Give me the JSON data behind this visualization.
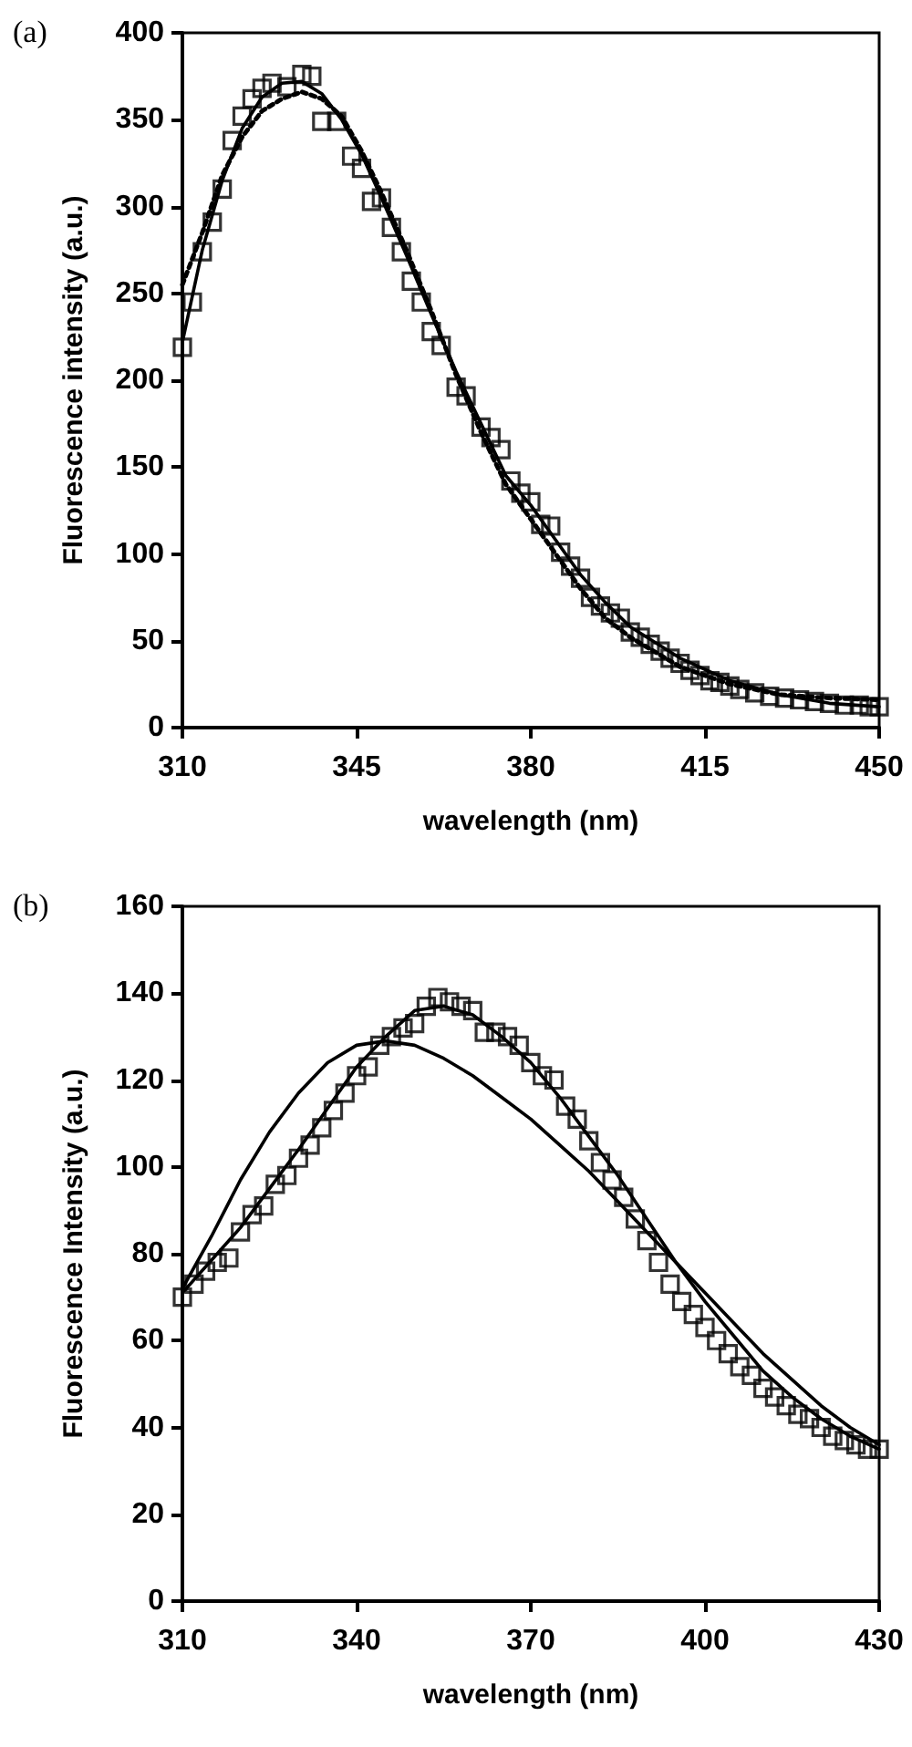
{
  "chart_data": [
    {
      "type": "scatter",
      "title": "(a)",
      "xlabel": "wavelength (nm)",
      "ylabel": "Fluorescence intensity (a.u.)",
      "xlim": [
        310,
        450
      ],
      "xticks": [
        310,
        345,
        380,
        415,
        450
      ],
      "ylim": [
        0,
        400
      ],
      "yticks": [
        0,
        50,
        100,
        150,
        200,
        250,
        300,
        350,
        400
      ],
      "series": [
        {
          "marker": "square",
          "color": "#000000",
          "x": [
            310,
            312,
            314,
            316,
            318,
            320,
            322,
            324,
            326,
            328,
            331,
            334,
            336,
            338,
            341,
            344,
            346,
            348,
            350,
            352,
            354,
            356,
            358,
            360,
            362,
            365,
            367,
            370,
            372,
            374,
            376,
            378,
            380,
            382,
            384,
            386,
            388,
            390,
            392,
            394,
            396,
            398,
            400,
            402,
            404,
            406,
            408,
            410,
            412,
            414,
            416,
            418,
            420,
            422,
            425,
            428,
            431,
            434,
            437,
            440,
            443,
            446,
            448,
            450
          ],
          "values": [
            219,
            245,
            274,
            291,
            310,
            338,
            352,
            362,
            368,
            371,
            369,
            376,
            375,
            349,
            349,
            329,
            322,
            303,
            305,
            288,
            274,
            257,
            245,
            228,
            220,
            196,
            191,
            173,
            167,
            160,
            142,
            135,
            130,
            117,
            116,
            101,
            93,
            86,
            75,
            70,
            66,
            63,
            55,
            52,
            48,
            44,
            40,
            37,
            33,
            30,
            27,
            26,
            24,
            22,
            20,
            18,
            17,
            16,
            15,
            14,
            13,
            13,
            12,
            12
          ]
        },
        {
          "type": "line",
          "marker": "none",
          "line_style": "solid",
          "color": "#000000",
          "x": [
            310,
            314,
            318,
            322,
            326,
            330,
            334,
            338,
            342,
            346,
            350,
            355,
            360,
            365,
            370,
            375,
            380,
            385,
            390,
            395,
            400,
            410,
            420,
            430,
            440,
            450
          ],
          "values": [
            222,
            275,
            315,
            345,
            363,
            371,
            372,
            365,
            350,
            330,
            305,
            272,
            238,
            205,
            175,
            145,
            128,
            108,
            88,
            72,
            58,
            40,
            27,
            19,
            14,
            12
          ]
        },
        {
          "type": "line",
          "marker": "none",
          "line_style": "dotted",
          "color": "#000000",
          "x": [
            310,
            314,
            318,
            322,
            326,
            330,
            334,
            338,
            342,
            346,
            350,
            355,
            360,
            365,
            370,
            375,
            380,
            385,
            390,
            395,
            400,
            410,
            420,
            430,
            440,
            450
          ],
          "values": [
            255,
            285,
            318,
            340,
            355,
            362,
            366,
            362,
            352,
            332,
            308,
            275,
            240,
            203,
            170,
            140,
            120,
            100,
            80,
            63,
            52,
            35,
            25,
            19,
            17,
            16
          ]
        }
      ]
    },
    {
      "type": "scatter",
      "title": "(b)",
      "xlabel": "wavelength (nm)",
      "ylabel": "Fluorescence Intensity (a.u.)",
      "xlim": [
        310,
        430
      ],
      "xticks": [
        310,
        340,
        370,
        400,
        430
      ],
      "ylim": [
        0,
        160
      ],
      "yticks": [
        0,
        20,
        40,
        60,
        80,
        100,
        120,
        140,
        160
      ],
      "series": [
        {
          "marker": "square",
          "color": "#000000",
          "x": [
            310,
            312,
            314,
            316,
            318,
            320,
            322,
            324,
            326,
            328,
            330,
            332,
            334,
            336,
            338,
            340,
            342,
            344,
            346,
            348,
            350,
            352,
            354,
            356,
            358,
            360,
            362,
            364,
            366,
            368,
            370,
            372,
            374,
            376,
            378,
            380,
            382,
            384,
            386,
            388,
            390,
            392,
            394,
            396,
            398,
            400,
            402,
            404,
            406,
            408,
            410,
            412,
            414,
            416,
            418,
            420,
            422,
            424,
            426,
            428,
            430
          ],
          "values": [
            70,
            73,
            76,
            78,
            79,
            85,
            89,
            91,
            96,
            98,
            102,
            105,
            109,
            113,
            117,
            121,
            123,
            128,
            130,
            132,
            133,
            137,
            139,
            138,
            137,
            136,
            131,
            131,
            130,
            128,
            124,
            121,
            120,
            114,
            111,
            106,
            101,
            97,
            93,
            88,
            83,
            78,
            73,
            69,
            66,
            63,
            60,
            57,
            54,
            52,
            49,
            47,
            45,
            43,
            42,
            40,
            38,
            37,
            36,
            35,
            35
          ]
        },
        {
          "type": "line",
          "marker": "none",
          "line_style": "solid",
          "color": "#000000",
          "x": [
            310,
            320,
            330,
            340,
            345,
            350,
            355,
            360,
            365,
            370,
            375,
            380,
            385,
            390,
            395,
            400,
            405,
            410,
            415,
            420,
            425,
            430
          ],
          "values": [
            71,
            86,
            104,
            123,
            130,
            136,
            137,
            135,
            130,
            124,
            116,
            107,
            98,
            88,
            78,
            69,
            61,
            53,
            47,
            42,
            38,
            35
          ]
        },
        {
          "type": "line",
          "marker": "none",
          "line_style": "solid",
          "color": "#000000",
          "x": [
            310,
            315,
            320,
            325,
            330,
            335,
            340,
            345,
            350,
            355,
            360,
            365,
            370,
            375,
            380,
            385,
            390,
            395,
            400,
            405,
            410,
            415,
            420,
            425,
            430
          ],
          "values": [
            72,
            84,
            97,
            108,
            117,
            124,
            128,
            129,
            128,
            125,
            121,
            116,
            111,
            105,
            99,
            92,
            85,
            78,
            71,
            64,
            57,
            51,
            45,
            40,
            36
          ]
        }
      ]
    }
  ]
}
